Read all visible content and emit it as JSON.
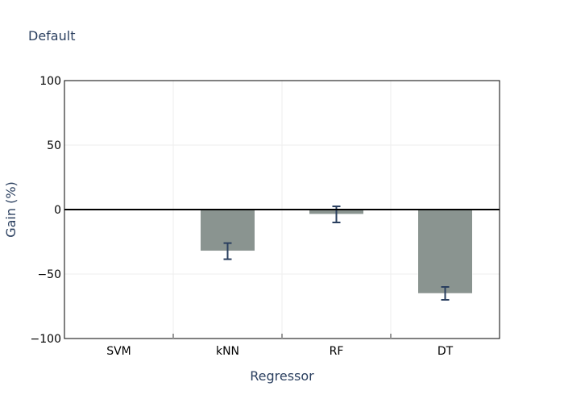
{
  "chart_data": {
    "type": "bar",
    "title": "Default",
    "xlabel": "Regressor",
    "ylabel": "Gain (%)",
    "categories": [
      "SVM",
      "kNN",
      "RF",
      "DT"
    ],
    "values": [
      0,
      -32,
      -3.5,
      -65
    ],
    "error_low": [
      0,
      6.5,
      6.5,
      5
    ],
    "error_high": [
      0,
      6,
      6,
      5
    ],
    "ylim": [
      -100,
      100
    ],
    "yticks": [
      100,
      50,
      0,
      -50,
      -100
    ],
    "ytick_labels": [
      "100",
      "50",
      "0",
      "−50",
      "−100"
    ],
    "grid": true,
    "bar_color": "#8a9490",
    "error_color": "#2a3f5f",
    "zero_line_color": "#000000"
  }
}
